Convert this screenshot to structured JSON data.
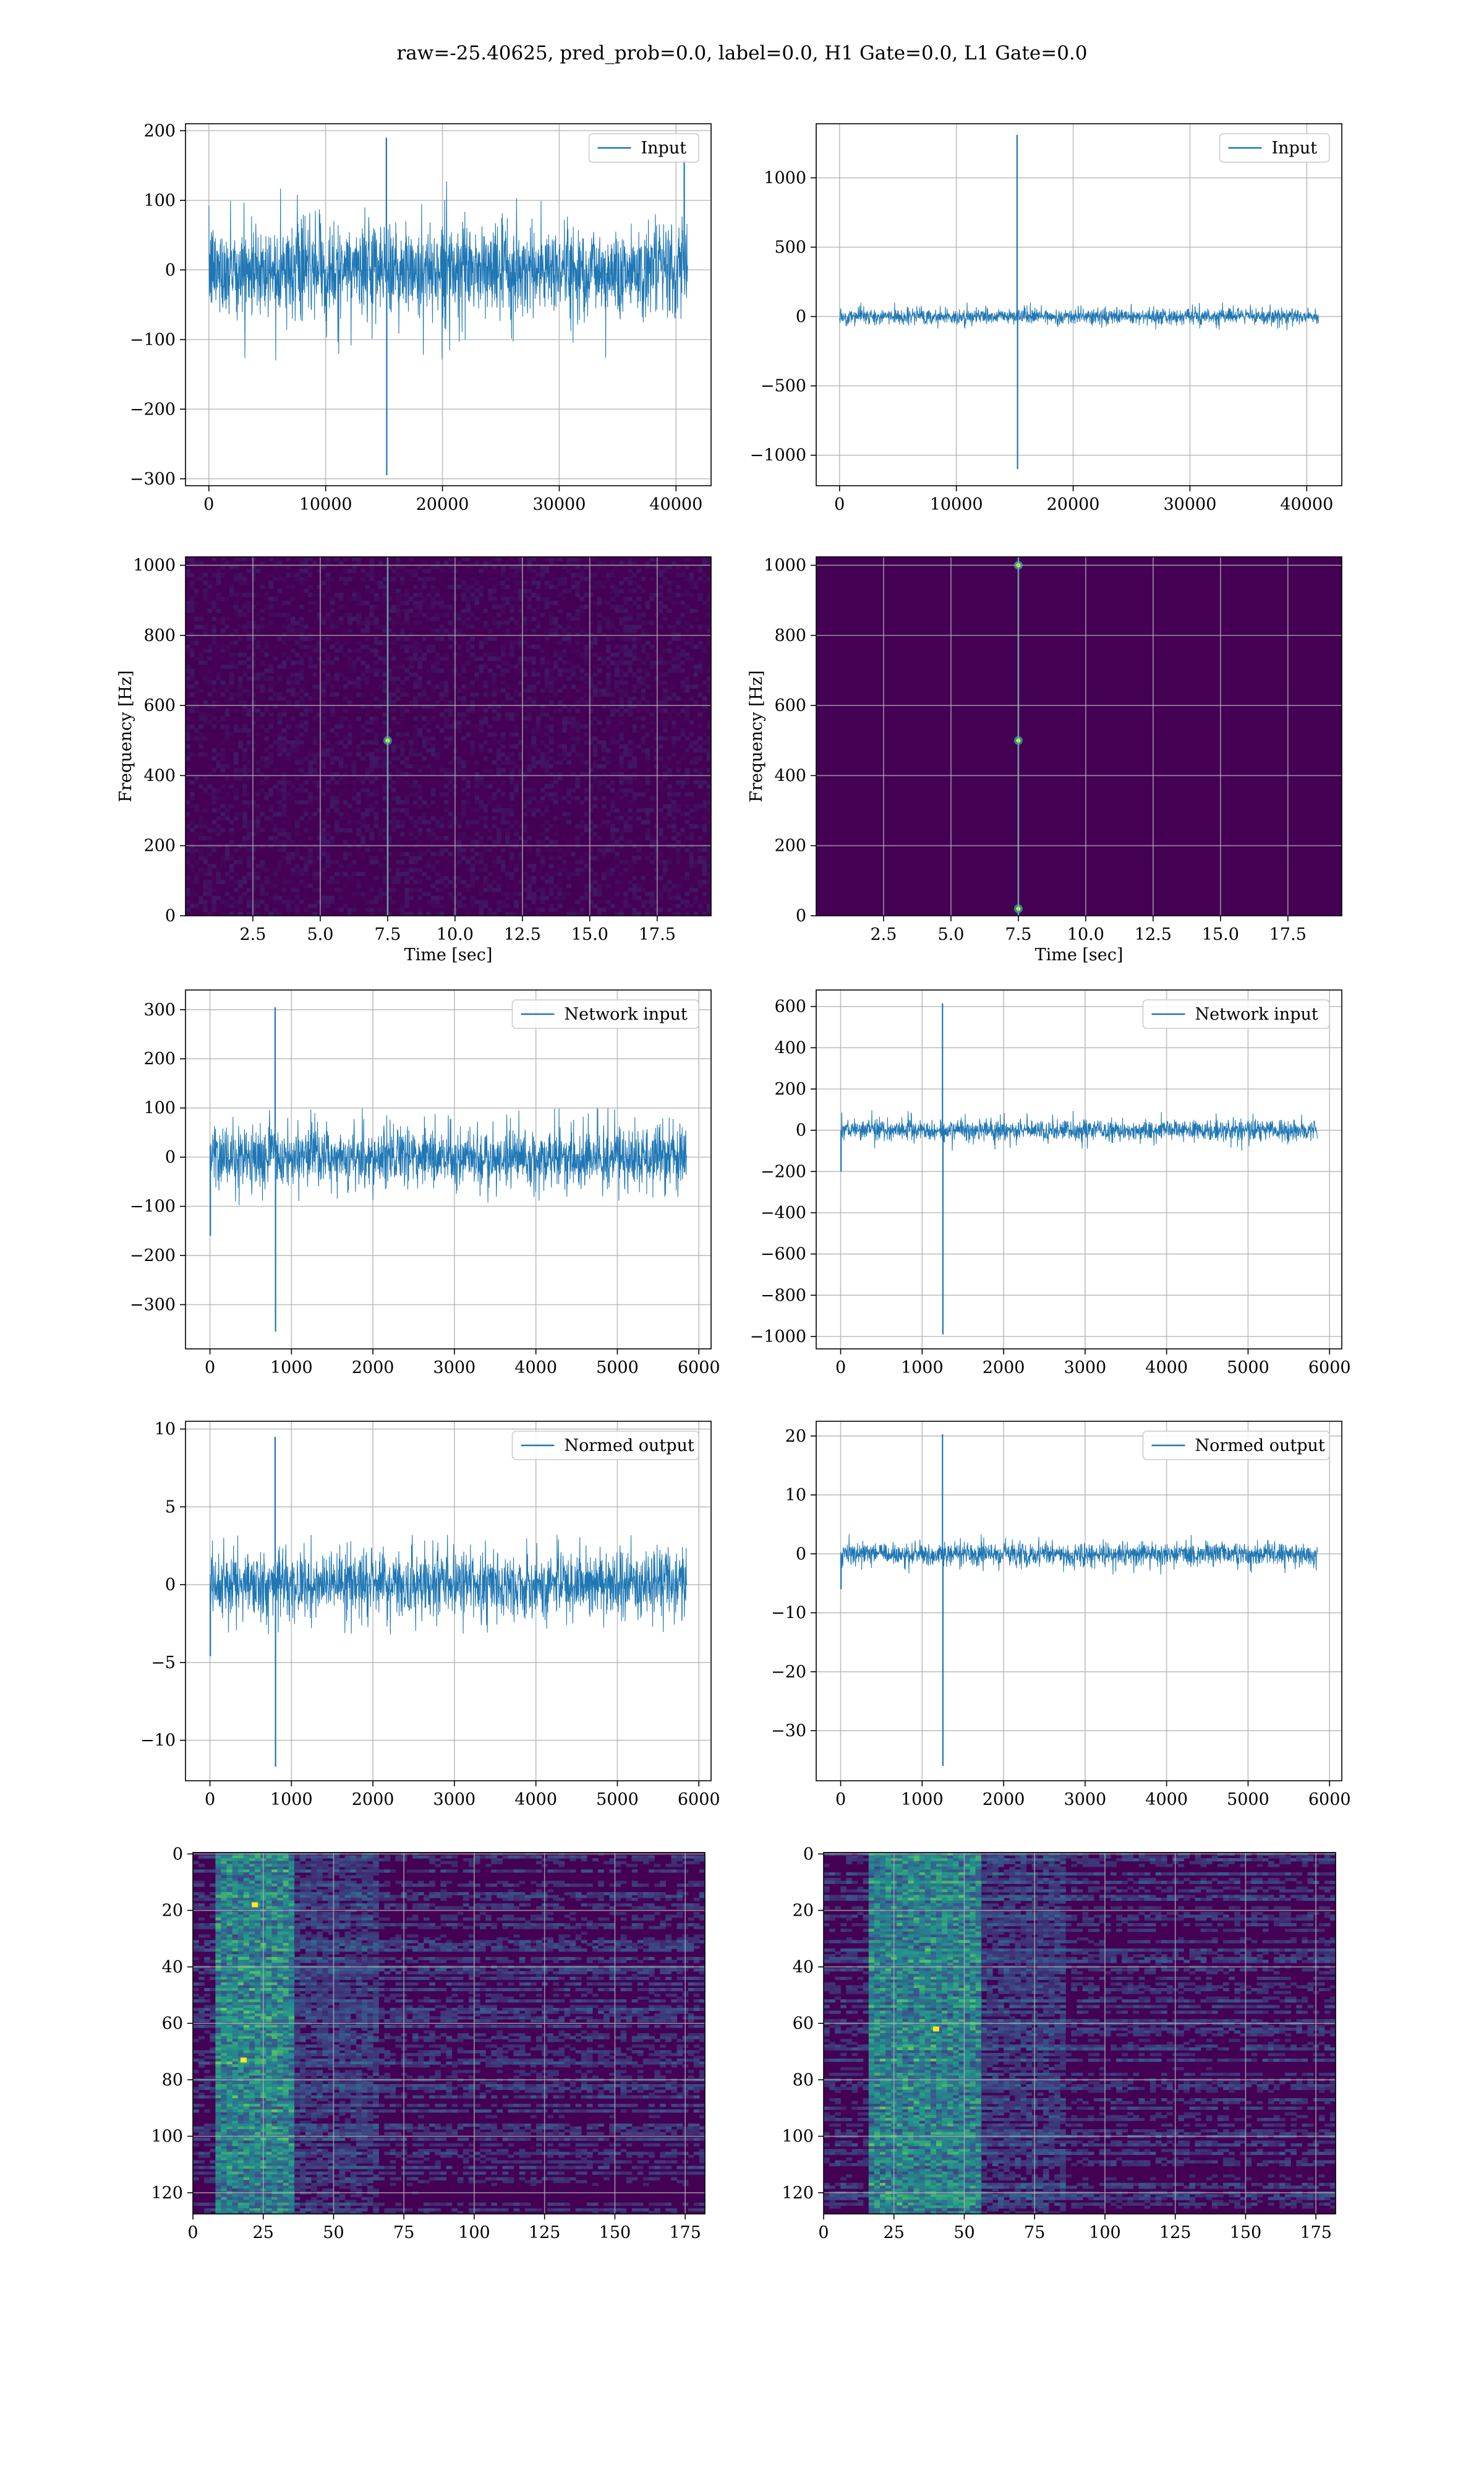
{
  "suptitle": "raw=-25.40625, pred_prob=0.0, label=0.0, H1 Gate=0.0, L1 Gate=0.0",
  "colors": {
    "line": "#1f77b4",
    "grid": "#b0b0b0",
    "viridis_dark": "#440154",
    "viridis_mid": "#21918c",
    "viridis_bright": "#fde725"
  },
  "chart_data": [
    {
      "id": "c1",
      "type": "line",
      "title": "",
      "legend": [
        "Input"
      ],
      "legend_position": "top-right",
      "xlim": [
        -2000,
        43000
      ],
      "ylim": [
        -310,
        210
      ],
      "xticks": [
        0,
        10000,
        20000,
        30000,
        40000
      ],
      "yticks": [
        -300,
        -200,
        -100,
        0,
        100,
        200
      ],
      "grid": true,
      "series": [
        {
          "name": "Input",
          "x": [
            0,
            41000
          ],
          "band": [
            -70,
            70
          ],
          "noise_peak": [
            -130,
            130
          ],
          "spikes": [
            {
              "x": 15200,
              "y": 190
            },
            {
              "x": 15230,
              "y": -295
            },
            {
              "x": 40700,
              "y": 158
            }
          ]
        }
      ]
    },
    {
      "id": "c2",
      "type": "line",
      "title": "",
      "legend": [
        "Input"
      ],
      "legend_position": "top-right",
      "xlim": [
        -2000,
        43000
      ],
      "ylim": [
        -1220,
        1390
      ],
      "xticks": [
        0,
        10000,
        20000,
        30000,
        40000
      ],
      "yticks": [
        -1000,
        -500,
        0,
        500,
        1000
      ],
      "grid": true,
      "series": [
        {
          "name": "Input",
          "x": [
            0,
            41000
          ],
          "band": [
            -60,
            60
          ],
          "noise_peak": [
            -100,
            100
          ],
          "spikes": [
            {
              "x": 15200,
              "y": 1310
            },
            {
              "x": 15240,
              "y": -1100
            }
          ]
        }
      ]
    },
    {
      "id": "c3",
      "type": "heatmap",
      "subtype": "spectrogram",
      "xlim": [
        0,
        19.5
      ],
      "ylim": [
        0,
        1024
      ],
      "xticks": [
        2.5,
        5.0,
        7.5,
        10.0,
        12.5,
        15.0,
        17.5
      ],
      "yticks": [
        0,
        200,
        400,
        600,
        800,
        1000
      ],
      "xlabel": "Time [sec]",
      "ylabel": "Frequency [Hz]",
      "grid": true,
      "noise_level": 0.12,
      "hotspots": [
        {
          "t": 7.5,
          "f": 500
        }
      ],
      "vertical_line_at": 7.5
    },
    {
      "id": "c4",
      "type": "heatmap",
      "subtype": "spectrogram",
      "xlim": [
        0,
        19.5
      ],
      "ylim": [
        0,
        1024
      ],
      "xticks": [
        2.5,
        5.0,
        7.5,
        10.0,
        12.5,
        15.0,
        17.5
      ],
      "yticks": [
        0,
        200,
        400,
        600,
        800,
        1000
      ],
      "xlabel": "Time [sec]",
      "ylabel": "Frequency [Hz]",
      "grid": true,
      "noise_level": 0.0,
      "hotspots": [
        {
          "t": 7.5,
          "f": 500
        },
        {
          "t": 7.5,
          "f": 1000
        },
        {
          "t": 7.5,
          "f": 20
        }
      ],
      "vertical_line_at": 7.5
    },
    {
      "id": "c5",
      "type": "line",
      "title": "",
      "legend": [
        "Network input"
      ],
      "legend_position": "top-right",
      "xlim": [
        -300,
        6150
      ],
      "ylim": [
        -390,
        340
      ],
      "xticks": [
        0,
        1000,
        2000,
        3000,
        4000,
        5000,
        6000
      ],
      "yticks": [
        -300,
        -200,
        -100,
        0,
        100,
        200,
        300
      ],
      "grid": true,
      "series": [
        {
          "name": "Network input",
          "x": [
            0,
            5850
          ],
          "band": [
            -65,
            65
          ],
          "noise_peak": [
            -100,
            100
          ],
          "spikes": [
            {
              "x": 800,
              "y": 305
            },
            {
              "x": 805,
              "y": -355
            },
            {
              "x": 5,
              "y": -160
            }
          ]
        }
      ]
    },
    {
      "id": "c6",
      "type": "line",
      "title": "",
      "legend": [
        "Network input"
      ],
      "legend_position": "top-right",
      "xlim": [
        -300,
        6150
      ],
      "ylim": [
        -1060,
        680
      ],
      "xticks": [
        0,
        1000,
        2000,
        3000,
        4000,
        5000,
        6000
      ],
      "yticks": [
        -1000,
        -800,
        -600,
        -400,
        -200,
        0,
        200,
        400,
        600
      ],
      "grid": true,
      "series": [
        {
          "name": "Network input",
          "x": [
            0,
            5850
          ],
          "band": [
            -55,
            55
          ],
          "noise_peak": [
            -100,
            100
          ],
          "spikes": [
            {
              "x": 1250,
              "y": 615
            },
            {
              "x": 1255,
              "y": -990
            },
            {
              "x": 5,
              "y": -200
            }
          ]
        }
      ]
    },
    {
      "id": "c7",
      "type": "line",
      "title": "",
      "legend": [
        "Normed output"
      ],
      "legend_position": "top-right",
      "xlim": [
        -300,
        6150
      ],
      "ylim": [
        -12.6,
        10.5
      ],
      "xticks": [
        0,
        1000,
        2000,
        3000,
        4000,
        5000,
        6000
      ],
      "yticks": [
        -10,
        -5,
        0,
        5,
        10
      ],
      "grid": true,
      "series": [
        {
          "name": "Normed output",
          "x": [
            0,
            5850
          ],
          "band": [
            -2.2,
            2.2
          ],
          "noise_peak": [
            -3.2,
            3.2
          ],
          "spikes": [
            {
              "x": 800,
              "y": 9.5
            },
            {
              "x": 805,
              "y": -11.7
            },
            {
              "x": 5,
              "y": -4.6
            }
          ]
        }
      ]
    },
    {
      "id": "c8",
      "type": "line",
      "title": "",
      "legend": [
        "Normed output"
      ],
      "legend_position": "top-right",
      "xlim": [
        -300,
        6150
      ],
      "ylim": [
        -38.5,
        22.5
      ],
      "xticks": [
        0,
        1000,
        2000,
        3000,
        4000,
        5000,
        6000
      ],
      "yticks": [
        -30,
        -20,
        -10,
        0,
        10,
        20
      ],
      "grid": true,
      "series": [
        {
          "name": "Normed output",
          "x": [
            0,
            5850
          ],
          "band": [
            -2,
            2
          ],
          "noise_peak": [
            -3.5,
            3.5
          ],
          "spikes": [
            {
              "x": 1250,
              "y": 20.3
            },
            {
              "x": 1255,
              "y": -36
            },
            {
              "x": 5,
              "y": -6
            }
          ]
        }
      ]
    },
    {
      "id": "c9",
      "type": "heatmap",
      "subtype": "image",
      "xlim": [
        0,
        182
      ],
      "ylim_inverted": [
        0,
        128
      ],
      "xticks": [
        0,
        25,
        50,
        75,
        100,
        125,
        150,
        175
      ],
      "yticks": [
        0,
        20,
        40,
        60,
        80,
        100,
        120
      ],
      "grid": true,
      "active_band": [
        8,
        35
      ],
      "hotspots": [
        {
          "x": 22,
          "y": 18
        },
        {
          "x": 18,
          "y": 73
        }
      ]
    },
    {
      "id": "c10",
      "type": "heatmap",
      "subtype": "image",
      "xlim": [
        0,
        182
      ],
      "ylim_inverted": [
        0,
        128
      ],
      "xticks": [
        0,
        25,
        50,
        75,
        100,
        125,
        150,
        175
      ],
      "yticks": [
        0,
        20,
        40,
        60,
        80,
        100,
        120
      ],
      "grid": true,
      "active_band": [
        15,
        55
      ],
      "hotspots": [
        {
          "x": 40,
          "y": 62
        }
      ]
    }
  ]
}
